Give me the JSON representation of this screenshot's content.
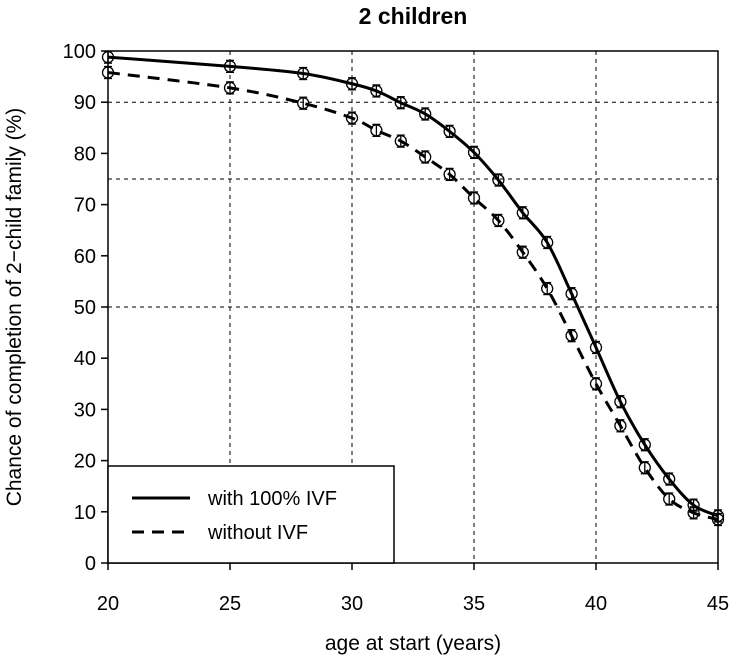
{
  "chart_data": {
    "type": "line",
    "title": "2 children",
    "xlabel": "age at start (years)",
    "ylabel": "Chance of completion of 2−child family (%)",
    "xlim": [
      20,
      45
    ],
    "ylim": [
      0,
      100
    ],
    "xticks": [
      20,
      25,
      30,
      35,
      40,
      45
    ],
    "yticks": [
      0,
      10,
      20,
      30,
      40,
      50,
      60,
      70,
      80,
      90,
      100
    ],
    "vgrid": [
      25,
      30,
      35,
      40
    ],
    "hgrid": [
      50,
      75,
      90
    ],
    "legend_position": "bottom-left",
    "series": [
      {
        "name": "with 100% IVF",
        "style": "solid",
        "x": [
          20,
          25,
          28,
          30,
          31,
          32,
          33,
          34,
          35,
          36,
          37,
          38,
          39,
          40,
          41,
          42,
          43,
          44,
          45
        ],
        "y": [
          98.8,
          97,
          95.6,
          93.6,
          92.2,
          89.9,
          87.7,
          84.3,
          80.2,
          74.8,
          68.4,
          62.6,
          52.6,
          42.1,
          31.5,
          23.1,
          16.4,
          11.3,
          9.2
        ]
      },
      {
        "name": "without IVF",
        "style": "dashed",
        "x": [
          20,
          25,
          28,
          30,
          31,
          32,
          33,
          34,
          35,
          36,
          37,
          38,
          39,
          40,
          41,
          42,
          43,
          44,
          45
        ],
        "y": [
          95.8,
          92.8,
          89.8,
          86.9,
          84.5,
          82.4,
          79.3,
          75.9,
          71.3,
          66.9,
          60.7,
          53.6,
          44.4,
          35.0,
          26.8,
          18.6,
          12.5,
          9.8,
          8.5
        ]
      }
    ]
  }
}
